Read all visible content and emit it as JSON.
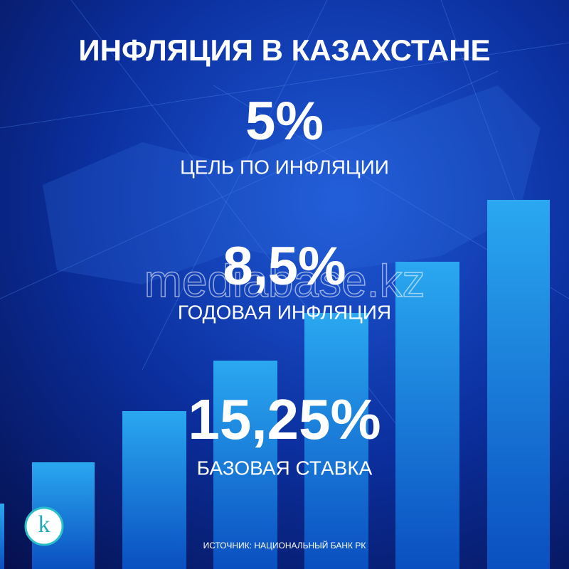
{
  "header": {
    "title": "ИНФЛЯЦИЯ В КАЗАХСТАНЕ"
  },
  "stats": [
    {
      "value": "5%",
      "label": "ЦЕЛЬ ПО ИНФЛЯЦИИ"
    },
    {
      "value": "8,5%",
      "label": "ГОДОВАЯ ИНФЛЯЦИЯ"
    },
    {
      "value": "15,25%",
      "label": "БАЗОВАЯ СТАВКА"
    }
  ],
  "watermark": "mediabase.kz",
  "logo": "k",
  "footer": {
    "source": "ИСТОЧНИК: НАЦИОНАЛЬНЫЙ БАНК РК"
  }
}
